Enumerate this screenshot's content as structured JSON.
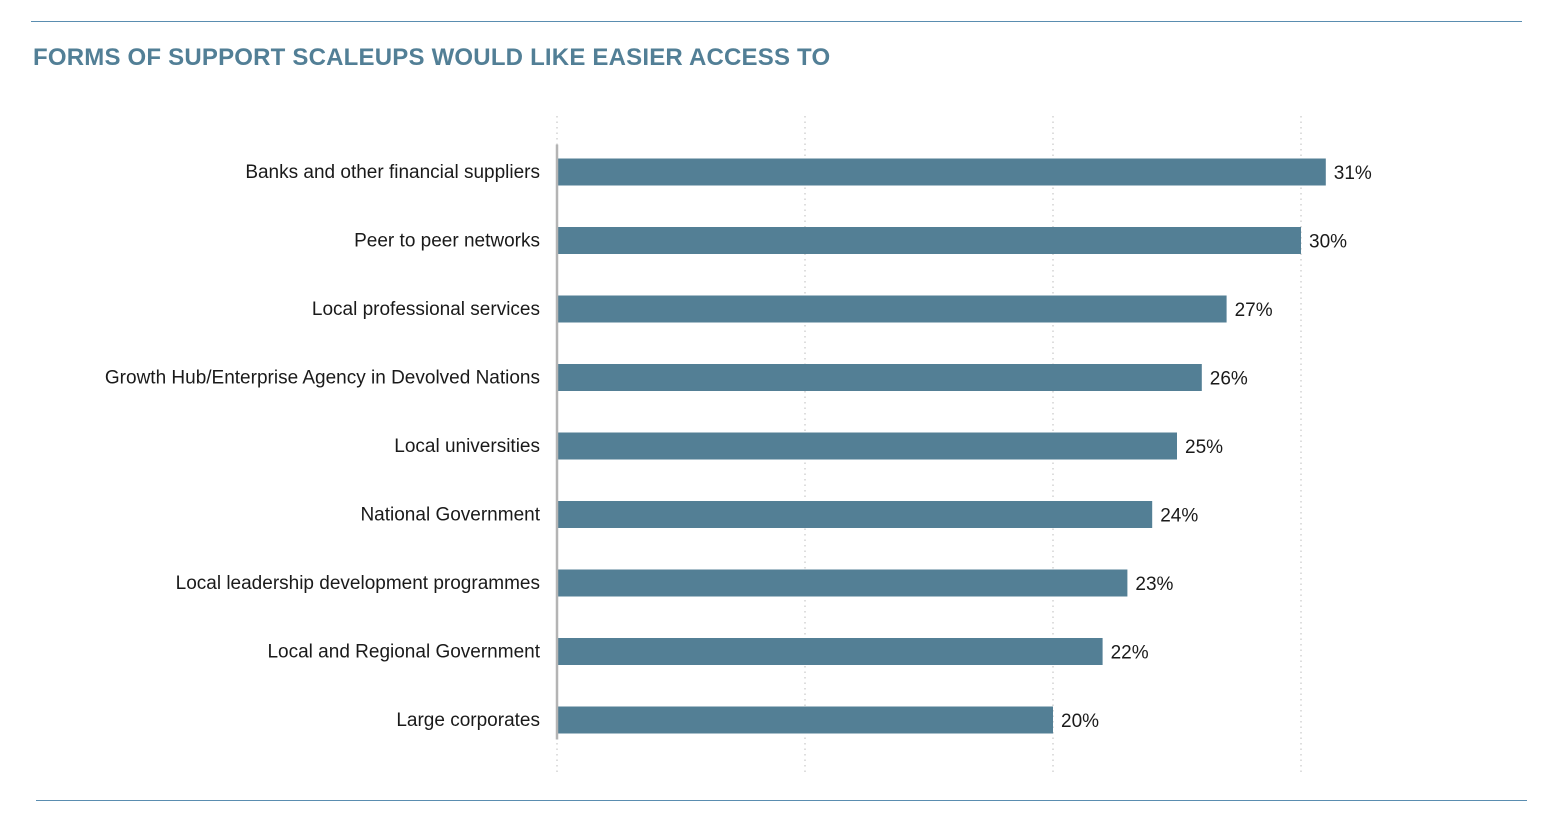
{
  "title": "FORMS OF SUPPORT SCALEUPS WOULD LIKE EASIER ACCESS TO",
  "colors": {
    "bar": "#537f95",
    "title": "#527f96",
    "rule": "#5a8db0",
    "gridline": "#c8c8c8",
    "axis": "#b4b4b4",
    "text": "#1a1a1a"
  },
  "chart_data": {
    "type": "bar",
    "orientation": "horizontal",
    "categories": [
      "Banks and other financial suppliers",
      "Peer to peer networks",
      "Local professional services",
      "Growth Hub/Enterprise Agency in Devolved Nations",
      "Local universities",
      "National Government",
      "Local leadership development programmes",
      "Local and Regional Government",
      "Large corporates"
    ],
    "values": [
      31,
      30,
      27,
      26,
      25,
      24,
      23,
      22,
      20
    ],
    "value_labels": [
      "31%",
      "30%",
      "27%",
      "26%",
      "25%",
      "24%",
      "23%",
      "22%",
      "20%"
    ],
    "xlim": [
      0,
      30
    ],
    "gridlines": [
      0,
      10,
      20,
      30
    ],
    "grid": true,
    "legend": "none"
  }
}
